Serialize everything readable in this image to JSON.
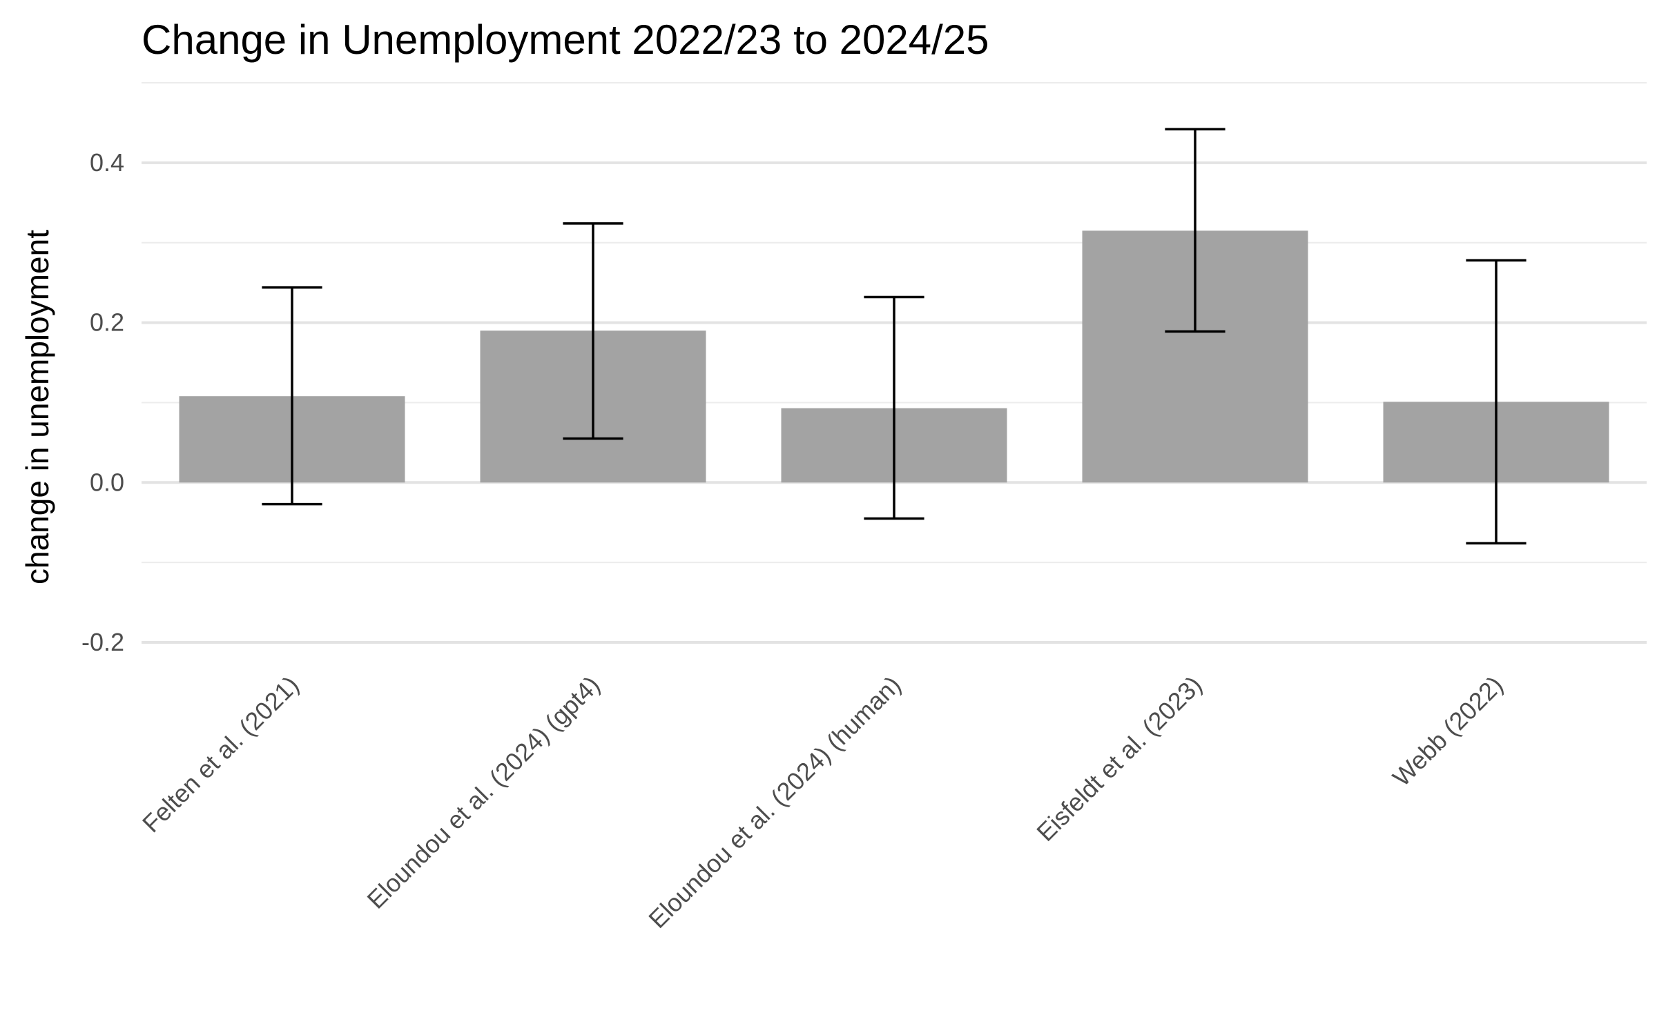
{
  "chart_data": {
    "type": "bar",
    "title": "Change in Unemployment 2022/23 to 2024/25",
    "xlabel": "",
    "ylabel": "change in unemployment",
    "categories": [
      "Felten et al. (2021)",
      "Eloundou et al. (2024) (gpt4)",
      "Eloundou et al. (2024) (human)",
      "Eisfeldt et al. (2023)",
      "Webb (2022)"
    ],
    "values": [
      0.108,
      0.19,
      0.093,
      0.315,
      0.101
    ],
    "error_low": [
      -0.027,
      0.055,
      -0.045,
      0.189,
      -0.076
    ],
    "error_high": [
      0.244,
      0.324,
      0.232,
      0.442,
      0.278
    ],
    "ylim": [
      -0.225,
      0.5
    ],
    "yticks": [
      -0.2,
      0.0,
      0.2,
      0.4
    ],
    "ytick_labels": [
      "-0.2",
      "0.0",
      "0.2",
      "0.4"
    ],
    "minor_yticks": [
      -0.1,
      0.1,
      0.3,
      0.5
    ],
    "grid": true,
    "legend": "none",
    "colors": {
      "bar": "#a3a3a3",
      "error_bar": "#000000",
      "grid": "#e3e3e3"
    }
  }
}
